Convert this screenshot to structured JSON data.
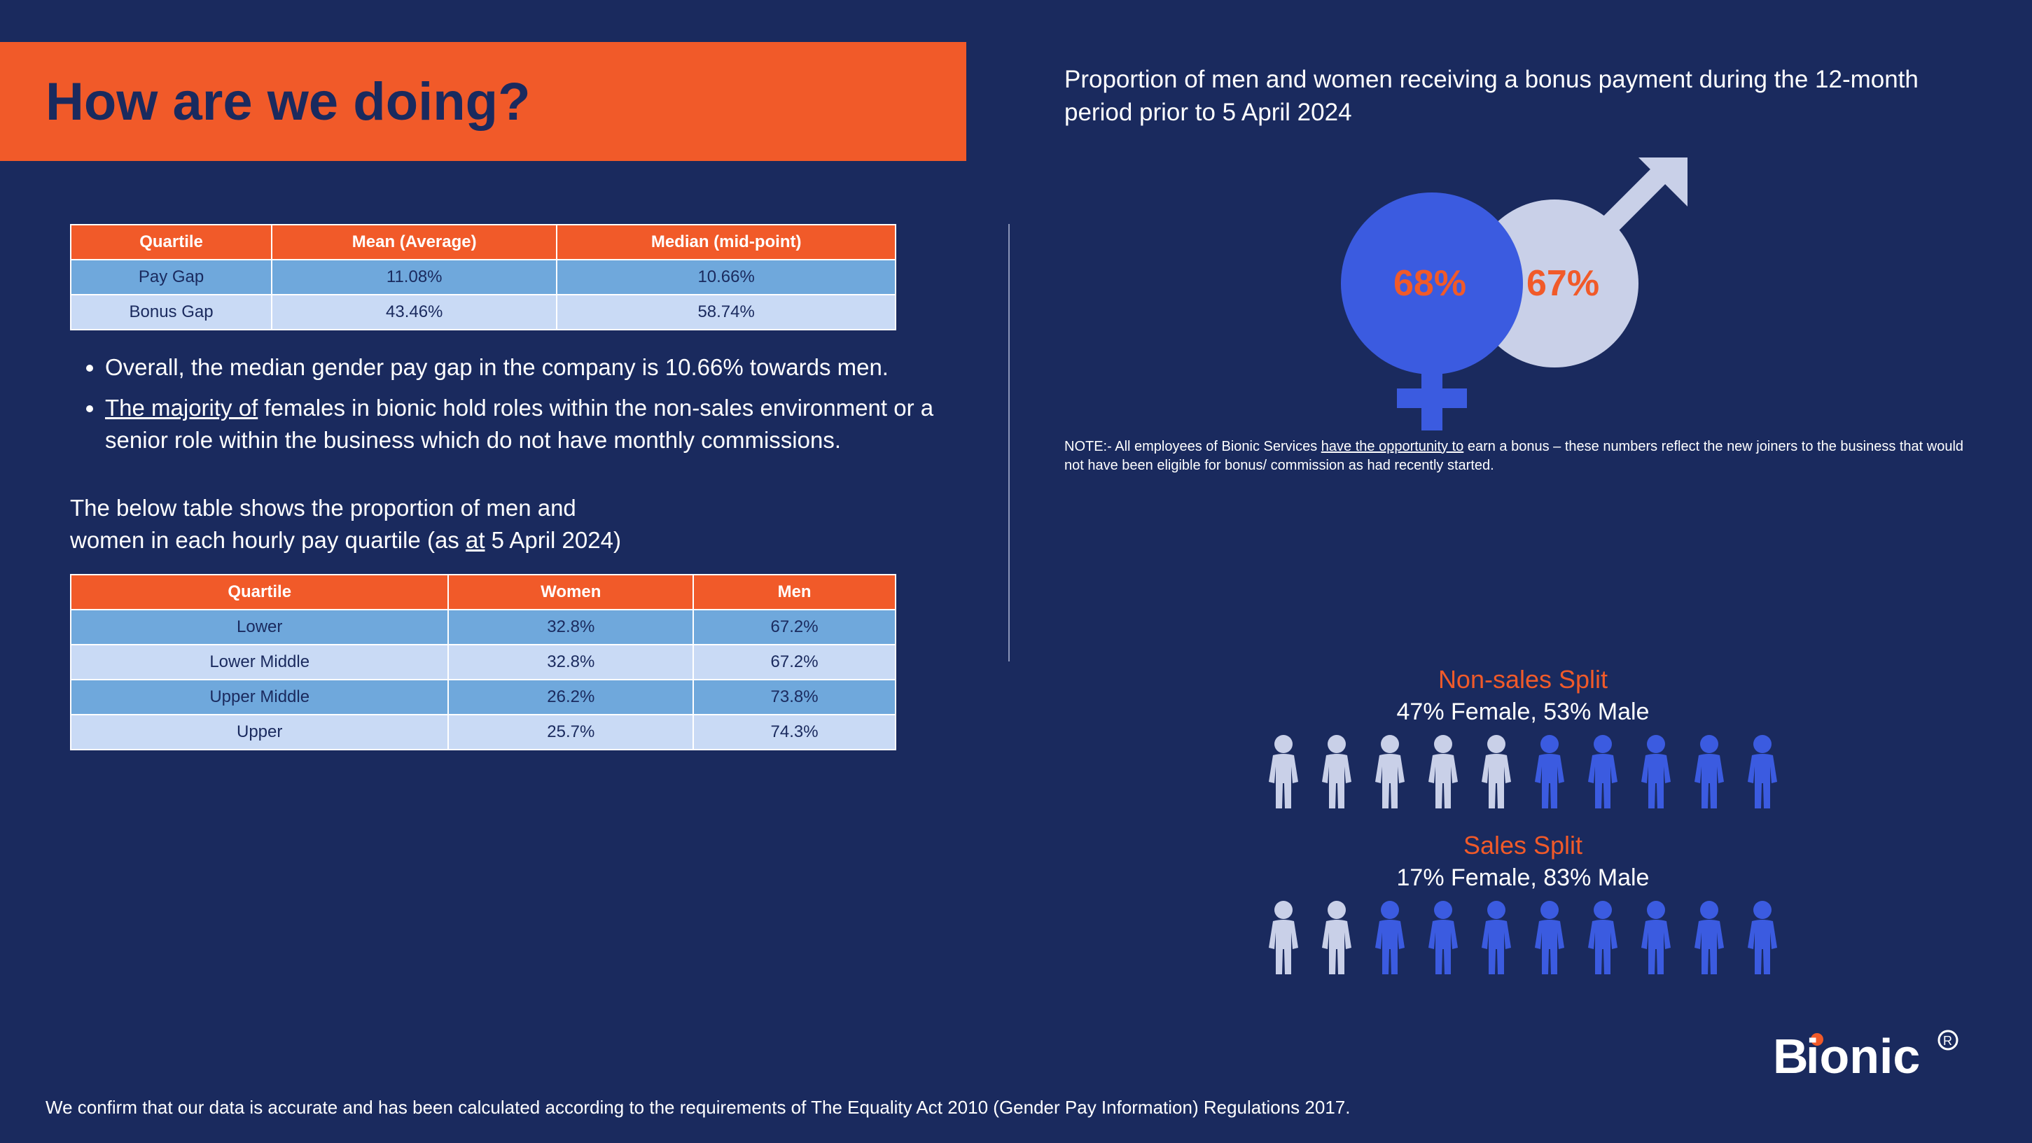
{
  "colors": {
    "background": "#1a2a5e",
    "accent_orange": "#f15a29",
    "table_row_a": "#6fa8dc",
    "table_row_b": "#c9daf5",
    "female_icon": "#c9d0e8",
    "male_icon": "#3b5be0",
    "female_symbol_fill": "#3b5be0",
    "male_symbol_fill": "#c9d0e8",
    "text_white": "#ffffff",
    "text_navy": "#1a2a5e"
  },
  "title": "How are we doing?",
  "gap_table": {
    "columns": [
      "Quartile",
      "Mean (Average)",
      "Median (mid-point)"
    ],
    "rows": [
      [
        "Pay Gap",
        "11.08%",
        "10.66%"
      ],
      [
        "Bonus Gap",
        "43.46%",
        "58.74%"
      ]
    ]
  },
  "bullets": [
    {
      "pre": "Overall, the median gender pay gap in the company is 10.66% towards men.",
      "underline": ""
    },
    {
      "underline": "The majority of",
      "post": " females in bionic hold roles within the non-sales environment or a senior role within the business which do not have monthly commissions."
    }
  ],
  "quartile_intro_l1": "The below table shows the proportion of men and",
  "quartile_intro_l2_a": "women in each hourly pay quartile (as ",
  "quartile_intro_l2_u": "at",
  "quartile_intro_l2_b": " 5 April 2024)",
  "quartile_table": {
    "columns": [
      "Quartile",
      "Women",
      "Men"
    ],
    "rows": [
      [
        "Lower",
        "32.8%",
        "67.2%"
      ],
      [
        "Lower Middle",
        "32.8%",
        "67.2%"
      ],
      [
        "Upper Middle",
        "26.2%",
        "73.8%"
      ],
      [
        "Upper",
        "25.7%",
        "74.3%"
      ]
    ]
  },
  "proportion_title": "Proportion of men and women receiving a bonus payment during the 12-month period prior to 5 April 2024",
  "bonus_pct": {
    "female": "68%",
    "male": "67%"
  },
  "note_a": "NOTE:- All employees of Bionic Services ",
  "note_u": "have the opportunity to",
  "note_b": " earn a bonus – these numbers reflect the new joiners to the business that would not have been eligible for bonus/ commission as had recently started.",
  "nonsales": {
    "title": "Non-sales Split",
    "subtitle": "47% Female, 53% Male",
    "female_count": 5,
    "male_count": 5
  },
  "sales": {
    "title": "Sales Split",
    "subtitle": "17% Female, 83% Male",
    "female_count": 2,
    "male_count": 8
  },
  "footer": "We confirm that our data is accurate and has been calculated according to the requirements of The Equality Act 2010 (Gender Pay Information) Regulations 2017.",
  "logo_text": "Bionic"
}
